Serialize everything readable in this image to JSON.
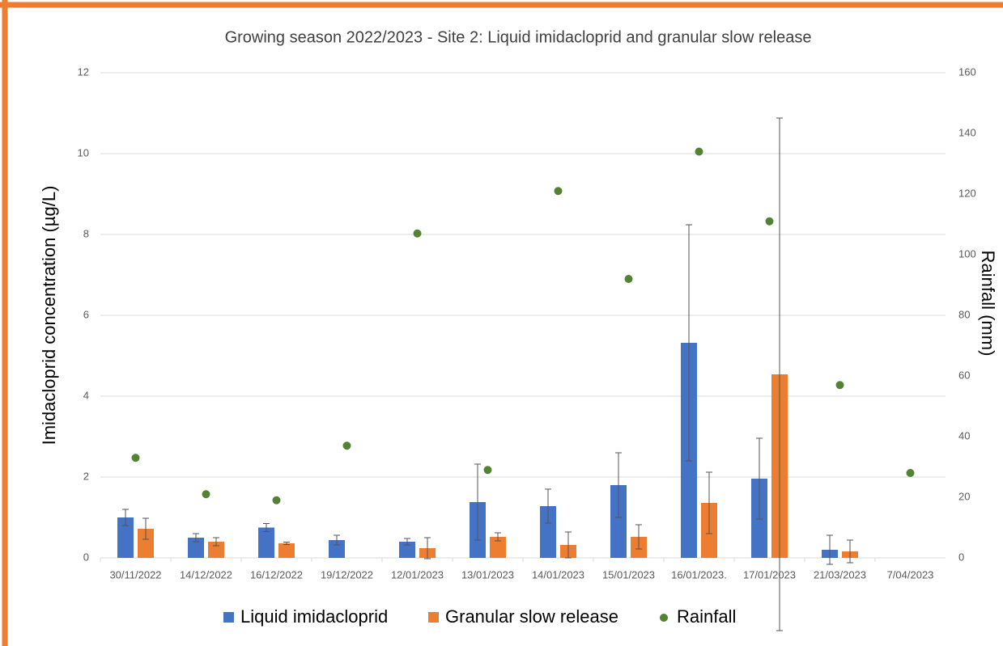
{
  "chart_data": {
    "type": "bar",
    "title": "Growing season 2022/2023 - Site 2: Liquid imidacloprid and granular slow release",
    "y_label": "Imidacloprid concentration (µg/L)",
    "y2_label": "Rainfall (mm)",
    "categories": [
      "30/11/2022",
      "14/12/2022",
      "16/12/2022",
      "19/12/2022",
      "12/01/2023",
      "13/01/2023",
      "14/01/2023",
      "15/01/2023",
      "16/01/2023.",
      "17/01/2023",
      "21/03/2023",
      "7/04/2023"
    ],
    "series": [
      {
        "name": "Liquid imidacloprid",
        "type": "bar",
        "color": "#4472c4",
        "values": [
          1.0,
          0.5,
          0.75,
          0.44,
          0.4,
          1.38,
          1.28,
          1.8,
          5.32,
          1.96,
          0.2,
          null
        ],
        "errors": [
          0.2,
          0.1,
          0.1,
          0.12,
          0.08,
          0.94,
          0.42,
          0.8,
          2.92,
          1.0,
          0.36,
          null
        ]
      },
      {
        "name": "Granular slow release",
        "type": "bar",
        "color": "#ed7d31",
        "values": [
          0.72,
          0.4,
          0.36,
          null,
          0.24,
          0.52,
          0.32,
          0.52,
          1.36,
          4.54,
          0.16,
          null
        ],
        "errors": [
          0.26,
          0.1,
          0.03,
          null,
          0.26,
          0.1,
          0.32,
          0.3,
          0.76,
          6.34,
          0.28,
          null
        ]
      },
      {
        "name": "Rainfall",
        "type": "scatter",
        "axis": "y2",
        "color": "#548235",
        "values": [
          33,
          21,
          19,
          37,
          107,
          29,
          121,
          92,
          134,
          111,
          57,
          28
        ]
      }
    ],
    "ylim": [
      0,
      12
    ],
    "yticks": [
      0,
      2,
      4,
      6,
      8,
      10,
      12
    ],
    "y2lim": [
      0,
      160
    ],
    "y2ticks": [
      0,
      20,
      40,
      60,
      80,
      100,
      120,
      140,
      160
    ],
    "grid": true
  }
}
